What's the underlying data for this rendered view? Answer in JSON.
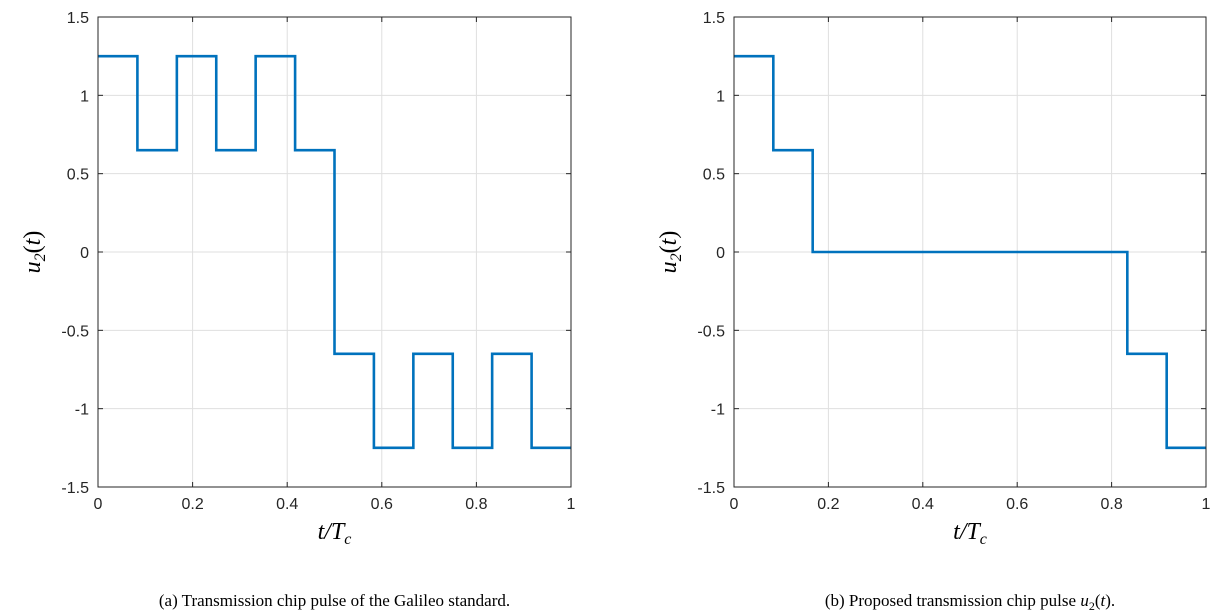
{
  "chart_data": [
    {
      "type": "line",
      "title": "",
      "xlabel": "t/T_c",
      "ylabel": "u_2(t)",
      "xlim": [
        0,
        1
      ],
      "ylim": [
        -1.5,
        1.5
      ],
      "xticks": [
        0,
        0.2,
        0.4,
        0.6,
        0.8,
        1
      ],
      "yticks": [
        -1.5,
        -1,
        -0.5,
        0,
        0.5,
        1,
        1.5
      ],
      "xtick_labels": [
        "0",
        "0.2",
        "0.4",
        "0.6",
        "0.8",
        "1"
      ],
      "ytick_labels": [
        "-1.5",
        "-1",
        "-0.5",
        "0",
        "0.5",
        "1",
        "1.5"
      ],
      "grid": true,
      "step": true,
      "line_color": "#0072BD",
      "caption": {
        "text": "(a) Transmission chip pulse of the Galileo standard."
      },
      "series": [
        {
          "x": [
            0,
            0.0833,
            0.0833,
            0.1667,
            0.1667,
            0.25,
            0.25,
            0.3333,
            0.3333,
            0.4167,
            0.4167,
            0.5,
            0.5,
            0.5833,
            0.5833,
            0.6667,
            0.6667,
            0.75,
            0.75,
            0.8333,
            0.8333,
            0.9167,
            0.9167,
            1
          ],
          "y": [
            1.25,
            1.25,
            0.65,
            0.65,
            1.25,
            1.25,
            0.65,
            0.65,
            1.25,
            1.25,
            0.65,
            0.65,
            -0.65,
            -0.65,
            -1.25,
            -1.25,
            -0.65,
            -0.65,
            -1.25,
            -1.25,
            -0.65,
            -0.65,
            -1.25,
            -1.25
          ]
        }
      ]
    },
    {
      "type": "line",
      "title": "",
      "xlabel": "t/T_c",
      "ylabel": "u_2(t)",
      "xlim": [
        0,
        1
      ],
      "ylim": [
        -1.5,
        1.5
      ],
      "xticks": [
        0,
        0.2,
        0.4,
        0.6,
        0.8,
        1
      ],
      "yticks": [
        -1.5,
        -1,
        -0.5,
        0,
        0.5,
        1,
        1.5
      ],
      "xtick_labels": [
        "0",
        "0.2",
        "0.4",
        "0.6",
        "0.8",
        "1"
      ],
      "ytick_labels": [
        "-1.5",
        "-1",
        "-0.5",
        "0",
        "0.5",
        "1",
        "1.5"
      ],
      "grid": true,
      "step": true,
      "line_color": "#0072BD",
      "caption": {
        "text": "(b) Proposed transmission chip pulse ",
        "math": "u_2(t)",
        "suffix": "."
      },
      "series": [
        {
          "x": [
            0,
            0.0833,
            0.0833,
            0.1667,
            0.1667,
            0.8333,
            0.8333,
            0.9167,
            0.9167,
            1
          ],
          "y": [
            1.25,
            1.25,
            0.65,
            0.65,
            0,
            0,
            -0.65,
            -0.65,
            -1.25,
            -1.25
          ]
        }
      ]
    }
  ]
}
